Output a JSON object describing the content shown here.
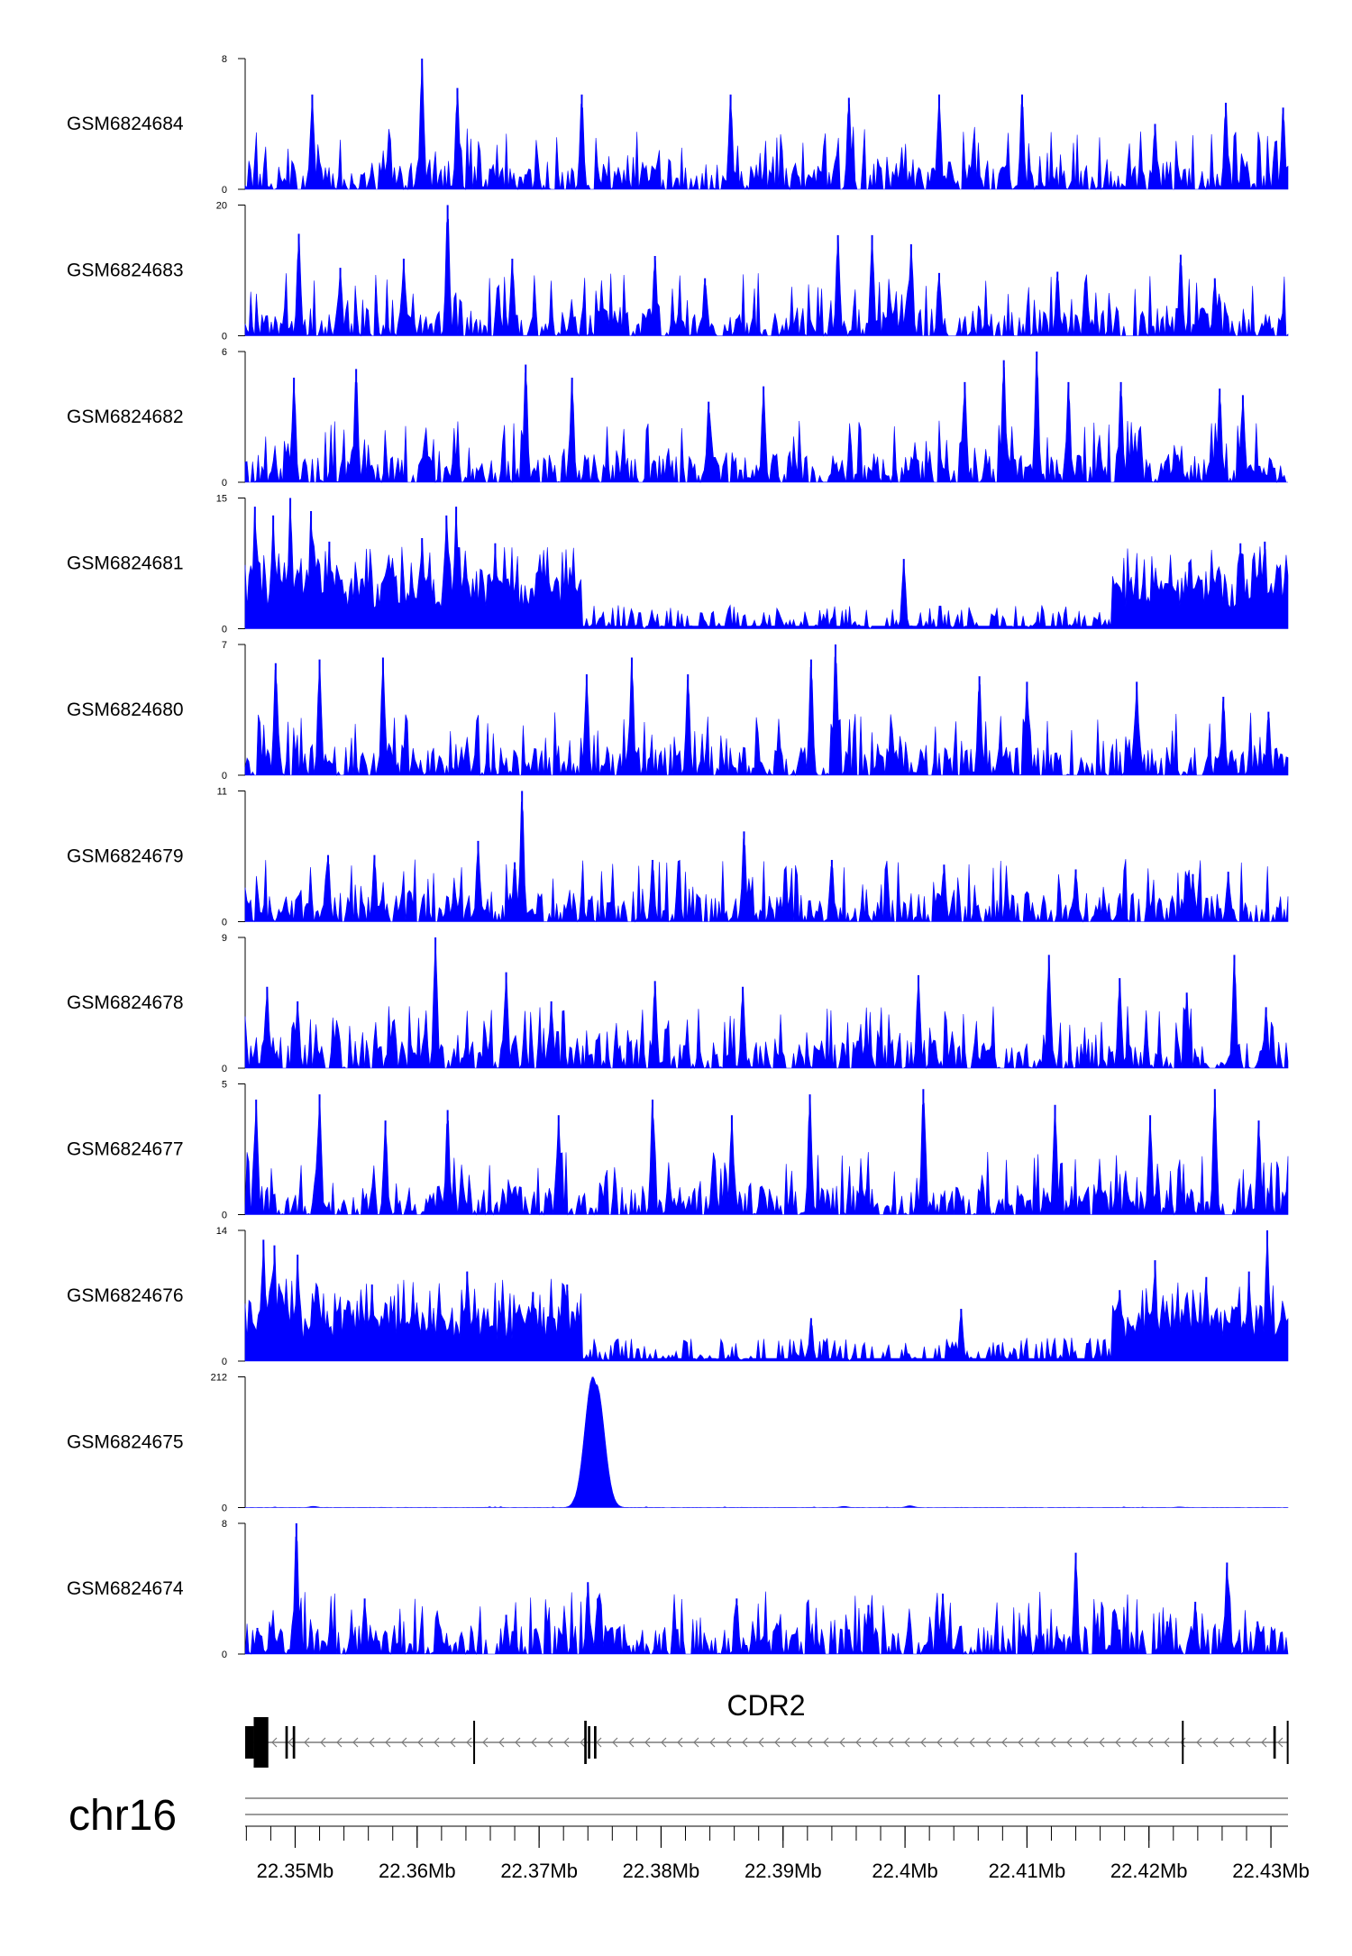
{
  "chart_data": {
    "type": "area",
    "genome": {
      "chromosome": "chr16",
      "region_start_mb": 22.3459,
      "region_end_mb": 22.4314
    },
    "tracks": [
      {
        "name": "GSM6824684",
        "ymax_label": "8",
        "ymin_label": "0",
        "ymax": 8,
        "profile": "sparse",
        "peaks": [
          [
            22.3514,
            5.8
          ],
          [
            22.3604,
            8.0
          ],
          [
            22.3633,
            6.2
          ],
          [
            22.3735,
            5.8
          ],
          [
            22.3857,
            5.8
          ],
          [
            22.3954,
            5.6
          ],
          [
            22.4028,
            5.8
          ],
          [
            22.4096,
            5.8
          ],
          [
            22.4205,
            4.0
          ],
          [
            22.4263,
            5.3
          ],
          [
            22.431,
            5.0
          ]
        ]
      },
      {
        "name": "GSM6824683",
        "ymax_label": "20",
        "ymin_label": "0",
        "ymax": 20,
        "profile": "sparse",
        "peaks": [
          [
            22.3503,
            15.6
          ],
          [
            22.3537,
            10.4
          ],
          [
            22.3589,
            11.8
          ],
          [
            22.3625,
            20.0
          ],
          [
            22.3678,
            11.8
          ],
          [
            22.3795,
            12.2
          ],
          [
            22.3836,
            8.8
          ],
          [
            22.3945,
            15.4
          ],
          [
            22.3973,
            15.4
          ],
          [
            22.4005,
            14.0
          ],
          [
            22.4028,
            9.6
          ],
          [
            22.4125,
            9.8
          ],
          [
            22.4226,
            12.4
          ],
          [
            22.4254,
            8.8
          ]
        ]
      },
      {
        "name": "GSM6824682",
        "ymax_label": "6",
        "ymin_label": "0",
        "ymax": 6,
        "profile": "sparse",
        "peaks": [
          [
            22.3499,
            4.8
          ],
          [
            22.355,
            5.2
          ],
          [
            22.3689,
            5.4
          ],
          [
            22.3727,
            4.8
          ],
          [
            22.3839,
            3.7
          ],
          [
            22.3884,
            4.4
          ],
          [
            22.4049,
            4.6
          ],
          [
            22.4081,
            5.6
          ],
          [
            22.4108,
            6.0
          ],
          [
            22.4134,
            4.6
          ],
          [
            22.4177,
            4.6
          ],
          [
            22.4258,
            4.3
          ],
          [
            22.4277,
            4.0
          ]
        ]
      },
      {
        "name": "GSM6824681",
        "ymax_label": "15",
        "ymin_label": "0",
        "ymax": 15,
        "profile": "broad",
        "peaks": [
          [
            22.3467,
            14.0
          ],
          [
            22.3482,
            13.0
          ],
          [
            22.3496,
            15.0
          ],
          [
            22.3513,
            13.5
          ],
          [
            22.3528,
            10.0
          ],
          [
            22.3604,
            10.4
          ],
          [
            22.3624,
            13.0
          ],
          [
            22.3632,
            14.0
          ],
          [
            22.3664,
            9.8
          ],
          [
            22.3722,
            7.0
          ],
          [
            22.3999,
            8.0
          ],
          [
            22.4233,
            7.6
          ],
          [
            22.4275,
            9.8
          ],
          [
            22.4295,
            10.0
          ]
        ]
      },
      {
        "name": "GSM6824680",
        "ymax_label": "7",
        "ymin_label": "0",
        "ymax": 7,
        "profile": "sparse",
        "peaks": [
          [
            22.3484,
            6.0
          ],
          [
            22.352,
            6.2
          ],
          [
            22.3572,
            6.3
          ],
          [
            22.3739,
            5.4
          ],
          [
            22.3776,
            6.3
          ],
          [
            22.3822,
            5.4
          ],
          [
            22.3923,
            6.2
          ],
          [
            22.3943,
            7.0
          ],
          [
            22.4061,
            5.3
          ],
          [
            22.41,
            5.0
          ],
          [
            22.419,
            5.0
          ],
          [
            22.4261,
            4.2
          ],
          [
            22.4298,
            3.4
          ]
        ]
      },
      {
        "name": "GSM6824679",
        "ymax_label": "11",
        "ymin_label": "0",
        "ymax": 11,
        "profile": "sparse",
        "peaks": [
          [
            22.3527,
            5.6
          ],
          [
            22.3565,
            5.6
          ],
          [
            22.365,
            6.8
          ],
          [
            22.3686,
            11.0
          ],
          [
            22.368,
            5.0
          ],
          [
            22.3793,
            5.2
          ],
          [
            22.3868,
            7.6
          ],
          [
            22.394,
            5.2
          ],
          [
            22.4032,
            4.8
          ],
          [
            22.414,
            4.4
          ],
          [
            22.4236,
            4.0
          ],
          [
            22.4265,
            4.2
          ]
        ]
      },
      {
        "name": "GSM6824678",
        "ymax_label": "9",
        "ymin_label": "0",
        "ymax": 9,
        "profile": "sparse",
        "peaks": [
          [
            22.3477,
            5.6
          ],
          [
            22.3502,
            4.6
          ],
          [
            22.3615,
            9.0
          ],
          [
            22.3673,
            6.6
          ],
          [
            22.371,
            4.6
          ],
          [
            22.3795,
            6.0
          ],
          [
            22.3867,
            5.6
          ],
          [
            22.4011,
            6.4
          ],
          [
            22.4118,
            7.8
          ],
          [
            22.4176,
            6.2
          ],
          [
            22.4231,
            5.2
          ],
          [
            22.427,
            7.8
          ],
          [
            22.4296,
            4.2
          ]
        ]
      },
      {
        "name": "GSM6824677",
        "ymax_label": "5",
        "ymin_label": "0",
        "ymax": 5,
        "profile": "sparse",
        "peaks": [
          [
            22.3468,
            4.4
          ],
          [
            22.352,
            4.6
          ],
          [
            22.3574,
            3.6
          ],
          [
            22.3625,
            4.0
          ],
          [
            22.3716,
            3.8
          ],
          [
            22.3793,
            4.4
          ],
          [
            22.3858,
            3.8
          ],
          [
            22.3922,
            4.6
          ],
          [
            22.4015,
            4.8
          ],
          [
            22.4123,
            4.2
          ],
          [
            22.4201,
            3.8
          ],
          [
            22.4254,
            4.8
          ],
          [
            22.429,
            3.6
          ]
        ]
      },
      {
        "name": "GSM6824676",
        "ymax_label": "14",
        "ymin_label": "0",
        "ymax": 14,
        "profile": "broad",
        "peaks": [
          [
            22.3474,
            13.0
          ],
          [
            22.3483,
            12.4
          ],
          [
            22.3502,
            11.4
          ],
          [
            22.3563,
            8.2
          ],
          [
            22.3641,
            9.6
          ],
          [
            22.3695,
            7.4
          ],
          [
            22.3723,
            8.2
          ],
          [
            22.3923,
            4.6
          ],
          [
            22.4046,
            5.6
          ],
          [
            22.4176,
            7.6
          ],
          [
            22.4205,
            10.8
          ],
          [
            22.4247,
            9.0
          ],
          [
            22.4282,
            9.6
          ],
          [
            22.4297,
            14.0
          ]
        ]
      },
      {
        "name": "GSM6824675",
        "ymax_label": "212",
        "ymin_label": "0",
        "ymax": 212,
        "profile": "single-peak",
        "peaks": [
          [
            22.3744,
            212
          ],
          [
            22.3747,
            200
          ],
          [
            22.3752,
            92
          ],
          [
            22.3737,
            60
          ],
          [
            22.3732,
            24
          ],
          [
            22.3515,
            2
          ],
          [
            22.395,
            2
          ],
          [
            22.4004,
            3
          ],
          [
            22.4225,
            1
          ]
        ]
      },
      {
        "name": "GSM6824674",
        "ymax_label": "8",
        "ymin_label": "0",
        "ymax": 8,
        "profile": "sparse",
        "peaks": [
          [
            22.3501,
            8.0
          ],
          [
            22.3469,
            1.6
          ],
          [
            22.3557,
            3.4
          ],
          [
            22.3673,
            2.4
          ],
          [
            22.374,
            4.4
          ],
          [
            22.3748,
            3.4
          ],
          [
            22.3862,
            3.4
          ],
          [
            22.397,
            3.0
          ],
          [
            22.4031,
            3.7
          ],
          [
            22.414,
            6.2
          ],
          [
            22.4215,
            2.0
          ],
          [
            22.4238,
            3.2
          ],
          [
            22.4264,
            5.6
          ],
          [
            22.4289,
            2.0
          ]
        ]
      }
    ],
    "gene": {
      "name": "CDR2",
      "strand": "-",
      "exons": [
        [
          22.3459,
          22.3466,
          "narrow"
        ],
        [
          22.3466,
          22.3478,
          "tall"
        ],
        [
          22.3492,
          22.3494,
          "narrow"
        ],
        [
          22.3498,
          22.35,
          "narrow"
        ],
        [
          22.3646,
          22.3647,
          "line"
        ],
        [
          22.3737,
          22.3739,
          "line"
        ],
        [
          22.374,
          22.3742,
          "narrow"
        ],
        [
          22.3745,
          22.3747,
          "narrow"
        ],
        [
          22.4227,
          22.4228,
          "line"
        ],
        [
          22.4302,
          22.4304,
          "narrow"
        ],
        [
          22.4313,
          22.4314,
          "line"
        ]
      ]
    },
    "x_axis": {
      "tick_labels": [
        "22.35Mb",
        "22.36Mb",
        "22.37Mb",
        "22.38Mb",
        "22.39Mb",
        "22.4Mb",
        "22.41Mb",
        "22.42Mb",
        "22.43Mb"
      ],
      "tick_values": [
        22.35,
        22.36,
        22.37,
        22.38,
        22.39,
        22.4,
        22.41,
        22.42,
        22.43
      ],
      "minor_tick_step_mb": 0.002
    },
    "colors": {
      "signal": "#0000ff",
      "axis": "#000000",
      "intron": "#7a7a7a",
      "exon": "#000000"
    }
  }
}
